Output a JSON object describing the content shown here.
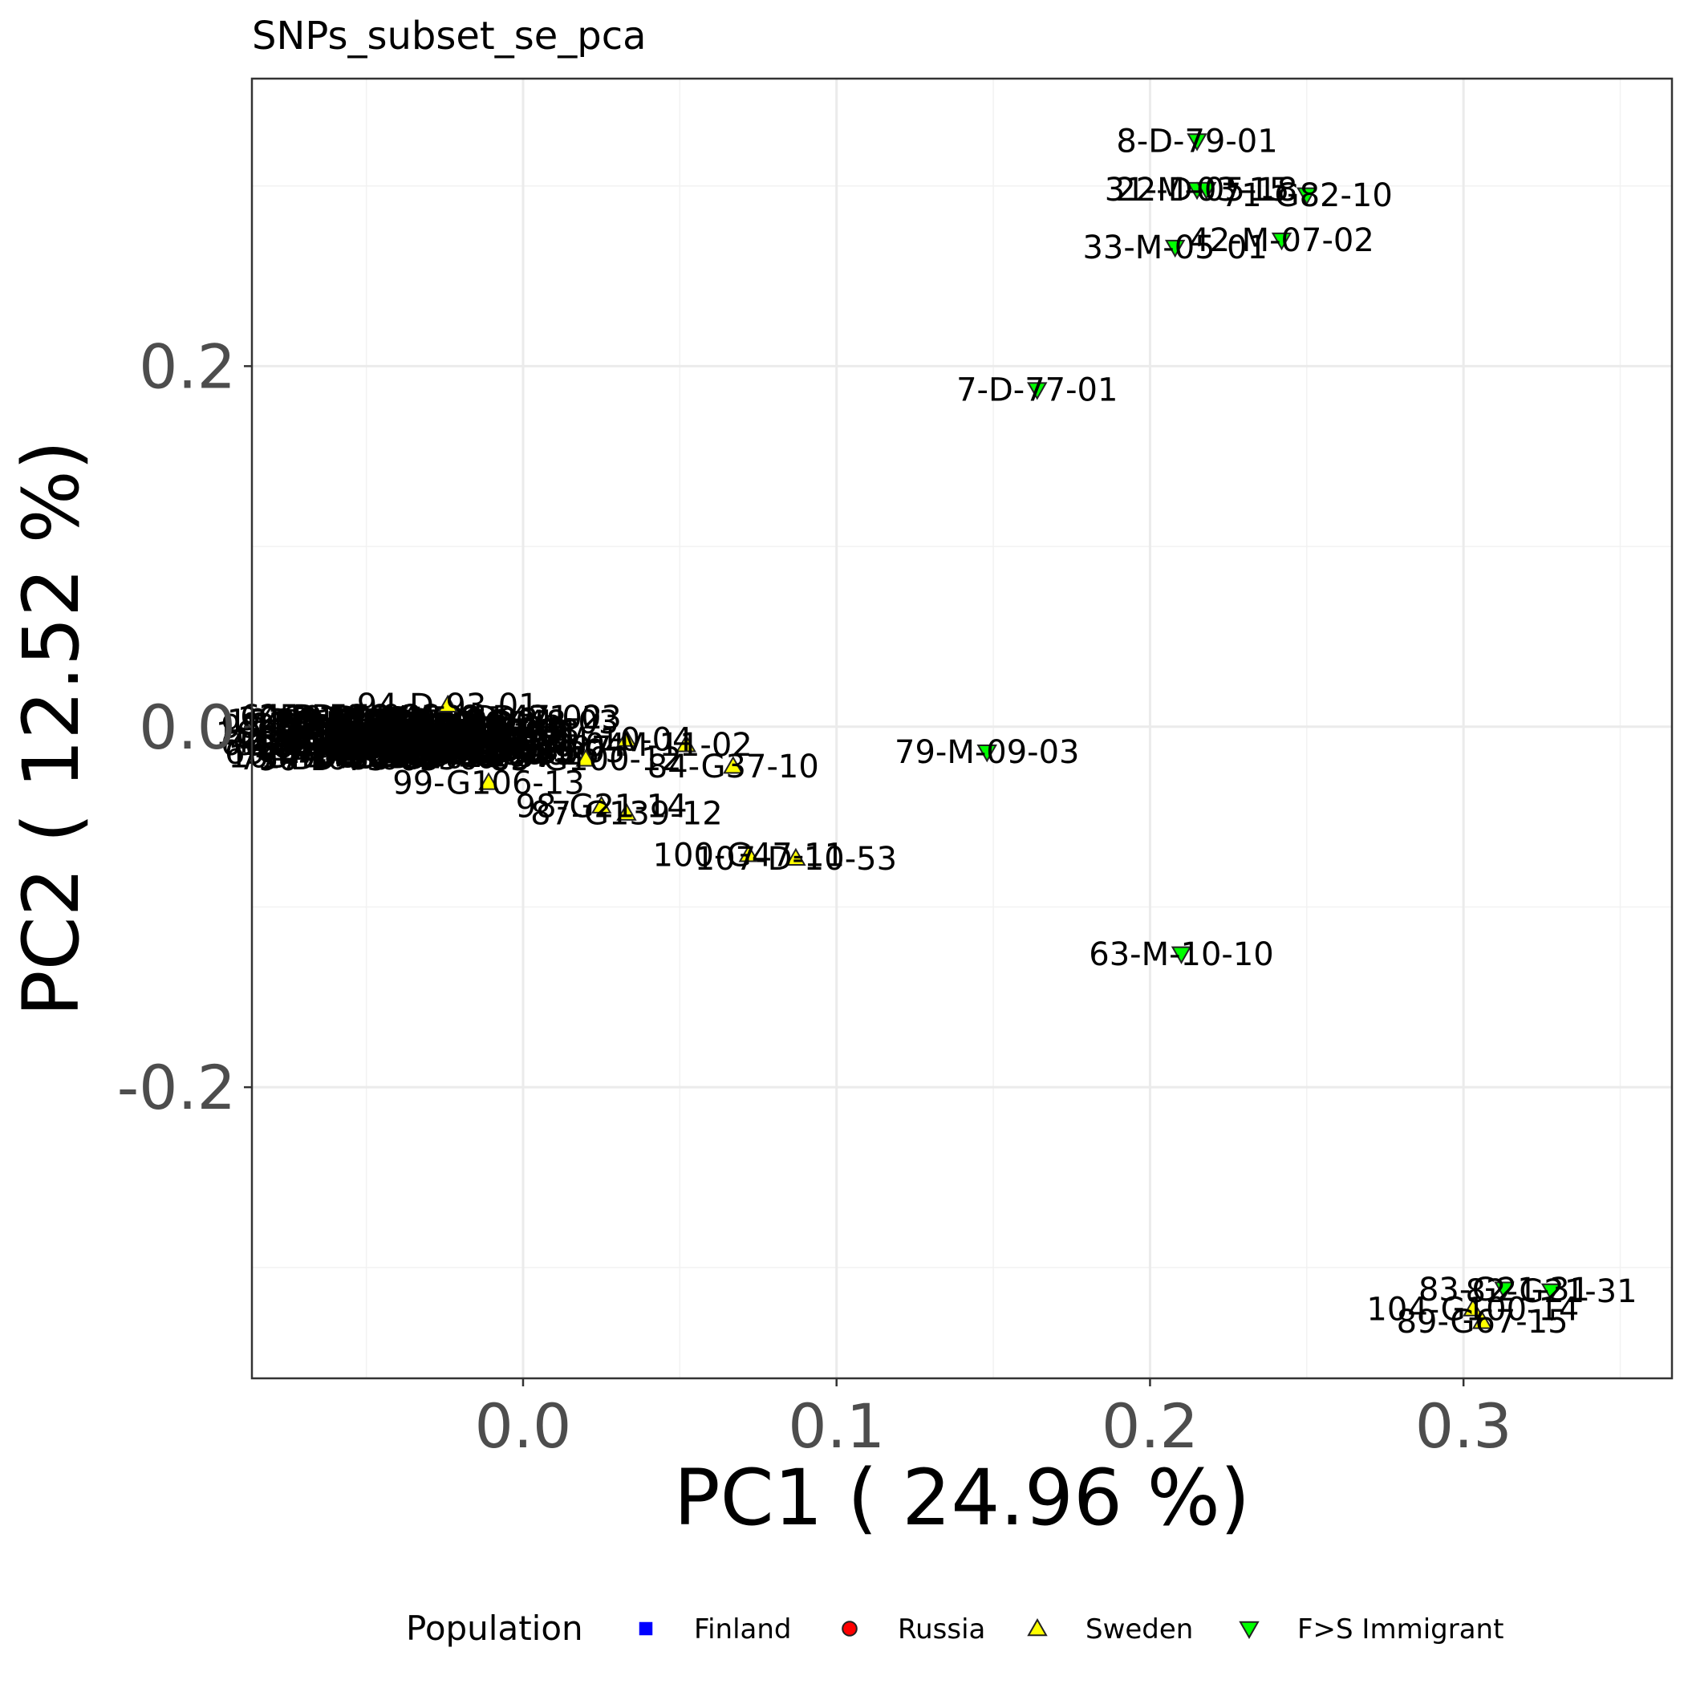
{
  "chart_data": {
    "type": "scatter",
    "title": "SNPs_subset_se_pca",
    "xlabel": "PC1 ( 24.96 %)",
    "ylabel": "PC2 ( 12.52 %)",
    "xlim": [
      -0.0865,
      0.3665
    ],
    "ylim": [
      -0.3615,
      0.3595
    ],
    "x_ticks": [
      0.0,
      0.1,
      0.2,
      0.3
    ],
    "x_tick_labels": [
      "0.0",
      "0.1",
      "0.2",
      "0.3"
    ],
    "y_ticks": [
      -0.2,
      0.0,
      0.2
    ],
    "y_tick_labels": [
      "-0.2",
      "0.0",
      "0.2"
    ],
    "x_minor_ticks": [
      -0.05,
      0.05,
      0.15,
      0.25,
      0.35
    ],
    "y_minor_ticks": [
      -0.3,
      -0.1,
      0.1,
      0.3
    ],
    "grid": true,
    "legend": {
      "title": "Population",
      "position": "bottom",
      "entries": [
        {
          "label": "Finland",
          "shape": "square",
          "color": "#0000ff"
        },
        {
          "label": "Russia",
          "shape": "circle",
          "color": "#ff0000"
        },
        {
          "label": "Sweden",
          "shape": "triangle-up",
          "color": "#ffff00"
        },
        {
          "label": "F>S Immigrant",
          "shape": "triangle-down",
          "color": "#00ff00"
        }
      ]
    },
    "series": [
      {
        "name": "Sweden",
        "points": [
          {
            "x": -0.024,
            "y": 0.012,
            "label": "94-D-93-01"
          },
          {
            "x": -0.011,
            "y": -0.031,
            "label": "99-G106-13"
          },
          {
            "x": 0.02,
            "y": -0.018,
            "label": "85-G100-12"
          },
          {
            "x": 0.033,
            "y": -0.007,
            "label": "M-10-04"
          },
          {
            "x": 0.052,
            "y": -0.01,
            "label": "M-11-02"
          },
          {
            "x": 0.067,
            "y": -0.022,
            "label": "84-G37-10"
          },
          {
            "x": 0.025,
            "y": -0.044,
            "label": "98-G21-14"
          },
          {
            "x": 0.033,
            "y": -0.048,
            "label": "87-G139-12"
          },
          {
            "x": 0.072,
            "y": -0.071,
            "label": "100-G47-11"
          },
          {
            "x": 0.087,
            "y": -0.073,
            "label": "107-D-10-53"
          },
          {
            "x": 0.303,
            "y": -0.323,
            "label": "104-G100-14"
          },
          {
            "x": 0.306,
            "y": -0.33,
            "label": "89-G67-15"
          }
        ]
      },
      {
        "name": "F>S Immigrant",
        "points": [
          {
            "x": 0.215,
            "y": 0.325,
            "label": "8-D-79-01"
          },
          {
            "x": 0.215,
            "y": 0.298,
            "label": "31-M-03-15"
          },
          {
            "x": 0.218,
            "y": 0.298,
            "label": "22-D-05-18"
          },
          {
            "x": 0.25,
            "y": 0.295,
            "label": "71-G82-10"
          },
          {
            "x": 0.208,
            "y": 0.266,
            "label": "33-M-05-01"
          },
          {
            "x": 0.242,
            "y": 0.27,
            "label": "42-M-07-02"
          },
          {
            "x": 0.164,
            "y": 0.187,
            "label": "7-D-77-01"
          },
          {
            "x": 0.148,
            "y": -0.014,
            "label": "79-M-09-03"
          },
          {
            "x": 0.21,
            "y": -0.126,
            "label": "63-M-10-10"
          },
          {
            "x": 0.313,
            "y": -0.312,
            "label": "83-G21-31"
          },
          {
            "x": 0.328,
            "y": -0.313,
            "label": "82-G21-31"
          }
        ]
      }
    ],
    "cluster_labels": [
      "1",
      "2",
      "3",
      "5",
      "6",
      "10",
      "12",
      "14",
      "15",
      "16",
      "17",
      "18",
      "19",
      "21",
      "23",
      "24",
      "25",
      "26",
      "27",
      "28",
      "29",
      "30",
      "36",
      "37",
      "38",
      "40",
      "41",
      "43",
      "44",
      "45",
      "46",
      "47",
      "48",
      "49",
      "50",
      "51",
      "52",
      "53",
      "54",
      "55",
      "56",
      "57",
      "58",
      "59",
      "60",
      "61",
      "62",
      "64",
      "65",
      "66",
      "67",
      "68",
      "69",
      "70",
      "72",
      "73",
      "74",
      "75",
      "76",
      "77",
      "78",
      "80",
      "81",
      "86",
      "88",
      "90",
      "91",
      "92",
      "93",
      "95",
      "96",
      "97",
      "101",
      "102",
      "103",
      "105",
      "106",
      "108",
      "109",
      "110"
    ]
  }
}
